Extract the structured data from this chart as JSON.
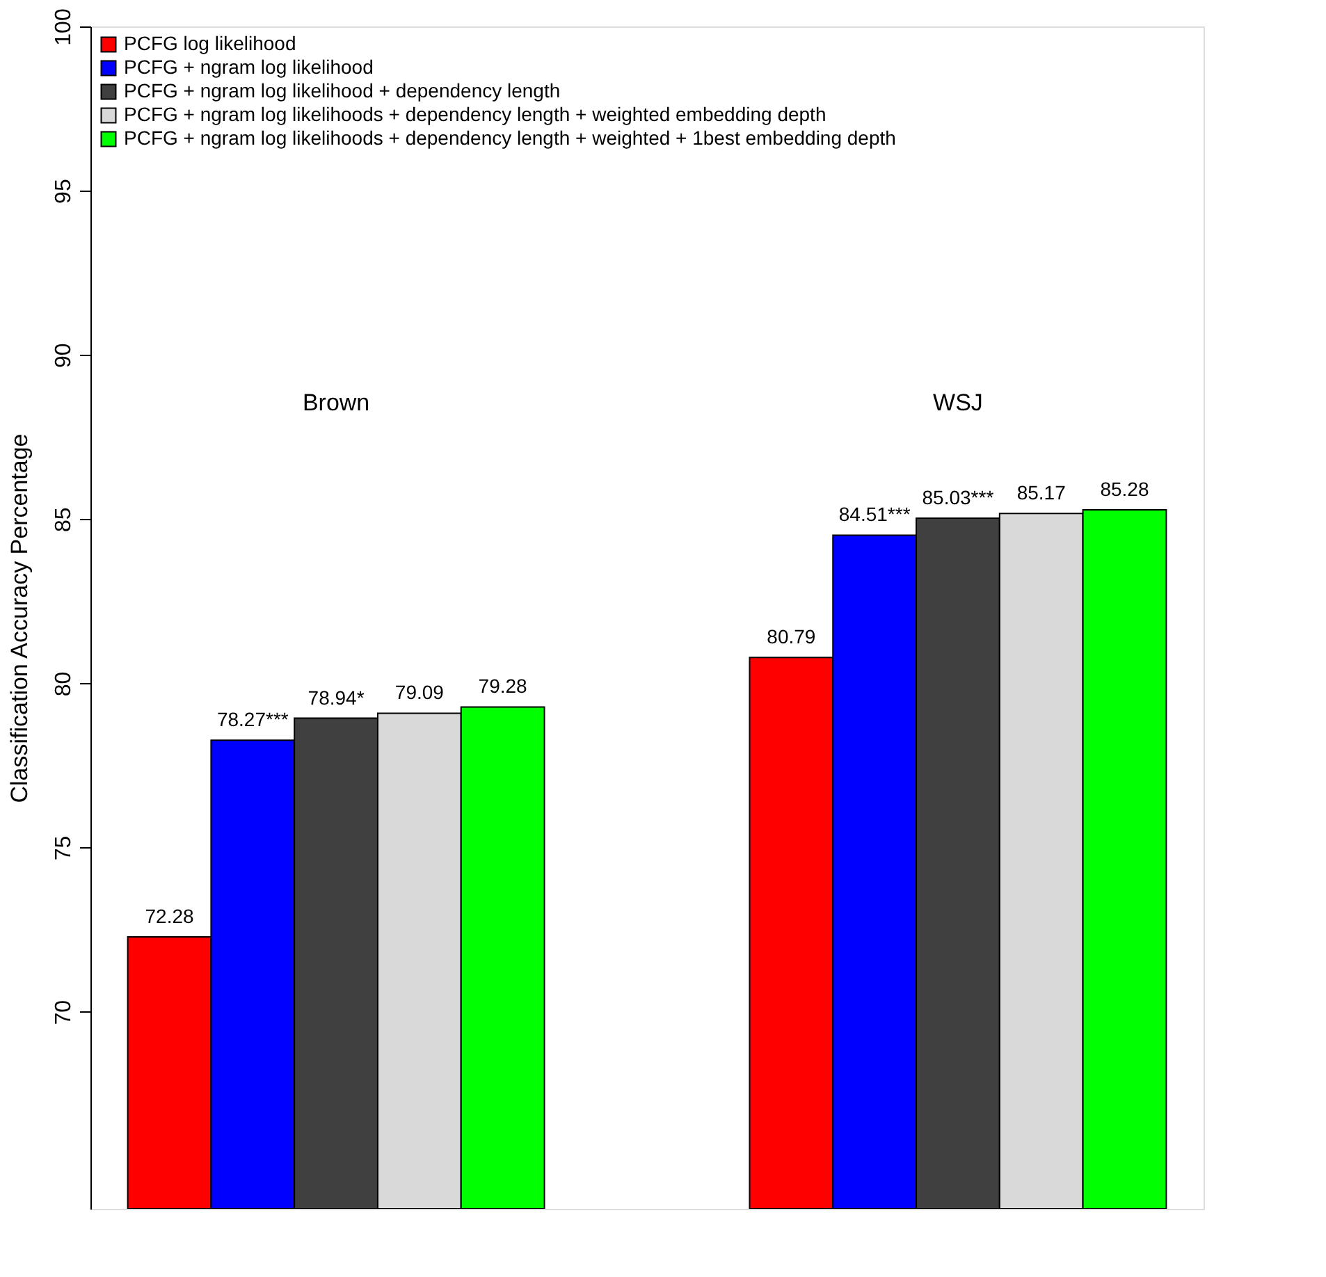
{
  "chart_data": {
    "type": "bar",
    "ylabel": "Classification Accuracy Percentage",
    "categories": [
      "Brown",
      "WSJ"
    ],
    "series": [
      {
        "name": "PCFG log likelihood",
        "color": "#ff0000",
        "values": [
          72.28,
          80.79
        ],
        "value_labels": [
          "72.28",
          "80.79"
        ]
      },
      {
        "name": "PCFG + ngram log likelihood",
        "color": "#0000ff",
        "values": [
          78.27,
          84.51
        ],
        "value_labels": [
          "78.27***",
          "84.51***"
        ]
      },
      {
        "name": "PCFG + ngram log likelihood + dependency length",
        "color": "#404040",
        "values": [
          78.94,
          85.03
        ],
        "value_labels": [
          "78.94*",
          "85.03***"
        ]
      },
      {
        "name": "PCFG + ngram log likelihoods + dependency length + weighted embedding depth",
        "color": "#d9d9d9",
        "values": [
          79.09,
          85.17
        ],
        "value_labels": [
          "79.09",
          "85.17"
        ]
      },
      {
        "name": "PCFG + ngram log likelihoods + dependency length + weighted + 1best embedding depth",
        "color": "#00ff00",
        "values": [
          79.28,
          85.28
        ],
        "value_labels": [
          "79.28",
          "85.28"
        ]
      }
    ],
    "ylim": [
      64,
      100
    ],
    "yticks": [
      70,
      75,
      80,
      85,
      90,
      95,
      100
    ],
    "grid": false,
    "legend": "top left"
  }
}
